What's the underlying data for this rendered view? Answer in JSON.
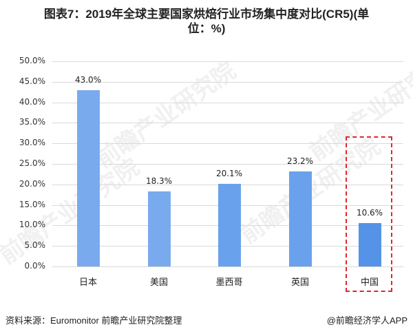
{
  "title": {
    "line1": "图表7：2019年全球主要国家烘焙行业市场集中度对比(CR5)(单",
    "line2": "位：%)"
  },
  "colors": {
    "bar_light": "#7aaaee",
    "bar_mid": "#6aa1ec",
    "bar_china": "#5593e8",
    "highlight_border": "#e0262b",
    "grid": "#d9d9d9"
  },
  "watermark": {
    "text": "前瞻产业研究院"
  },
  "footer": {
    "source": "资料来源：Euromonitor 前瞻产业研究院整理",
    "credit": "@前瞻经济学人APP"
  },
  "chart_data": {
    "type": "bar",
    "title": "图表7：2019年全球主要国家烘焙行业市场集中度对比(CR5)(单位：%)",
    "categories": [
      "日本",
      "美国",
      "墨西哥",
      "英国",
      "中国"
    ],
    "values": [
      43.0,
      18.3,
      20.1,
      23.2,
      10.6
    ],
    "value_labels": [
      "43.0%",
      "18.3%",
      "20.1%",
      "23.2%",
      "10.6%"
    ],
    "xlabel": "",
    "ylabel": "",
    "ylim": [
      0,
      50
    ],
    "yticks": [
      "0.0%",
      "5.0%",
      "10.0%",
      "15.0%",
      "20.0%",
      "25.0%",
      "30.0%",
      "35.0%",
      "40.0%",
      "45.0%",
      "50.0%"
    ],
    "grid": true,
    "legend": "none",
    "highlight": "中国"
  }
}
